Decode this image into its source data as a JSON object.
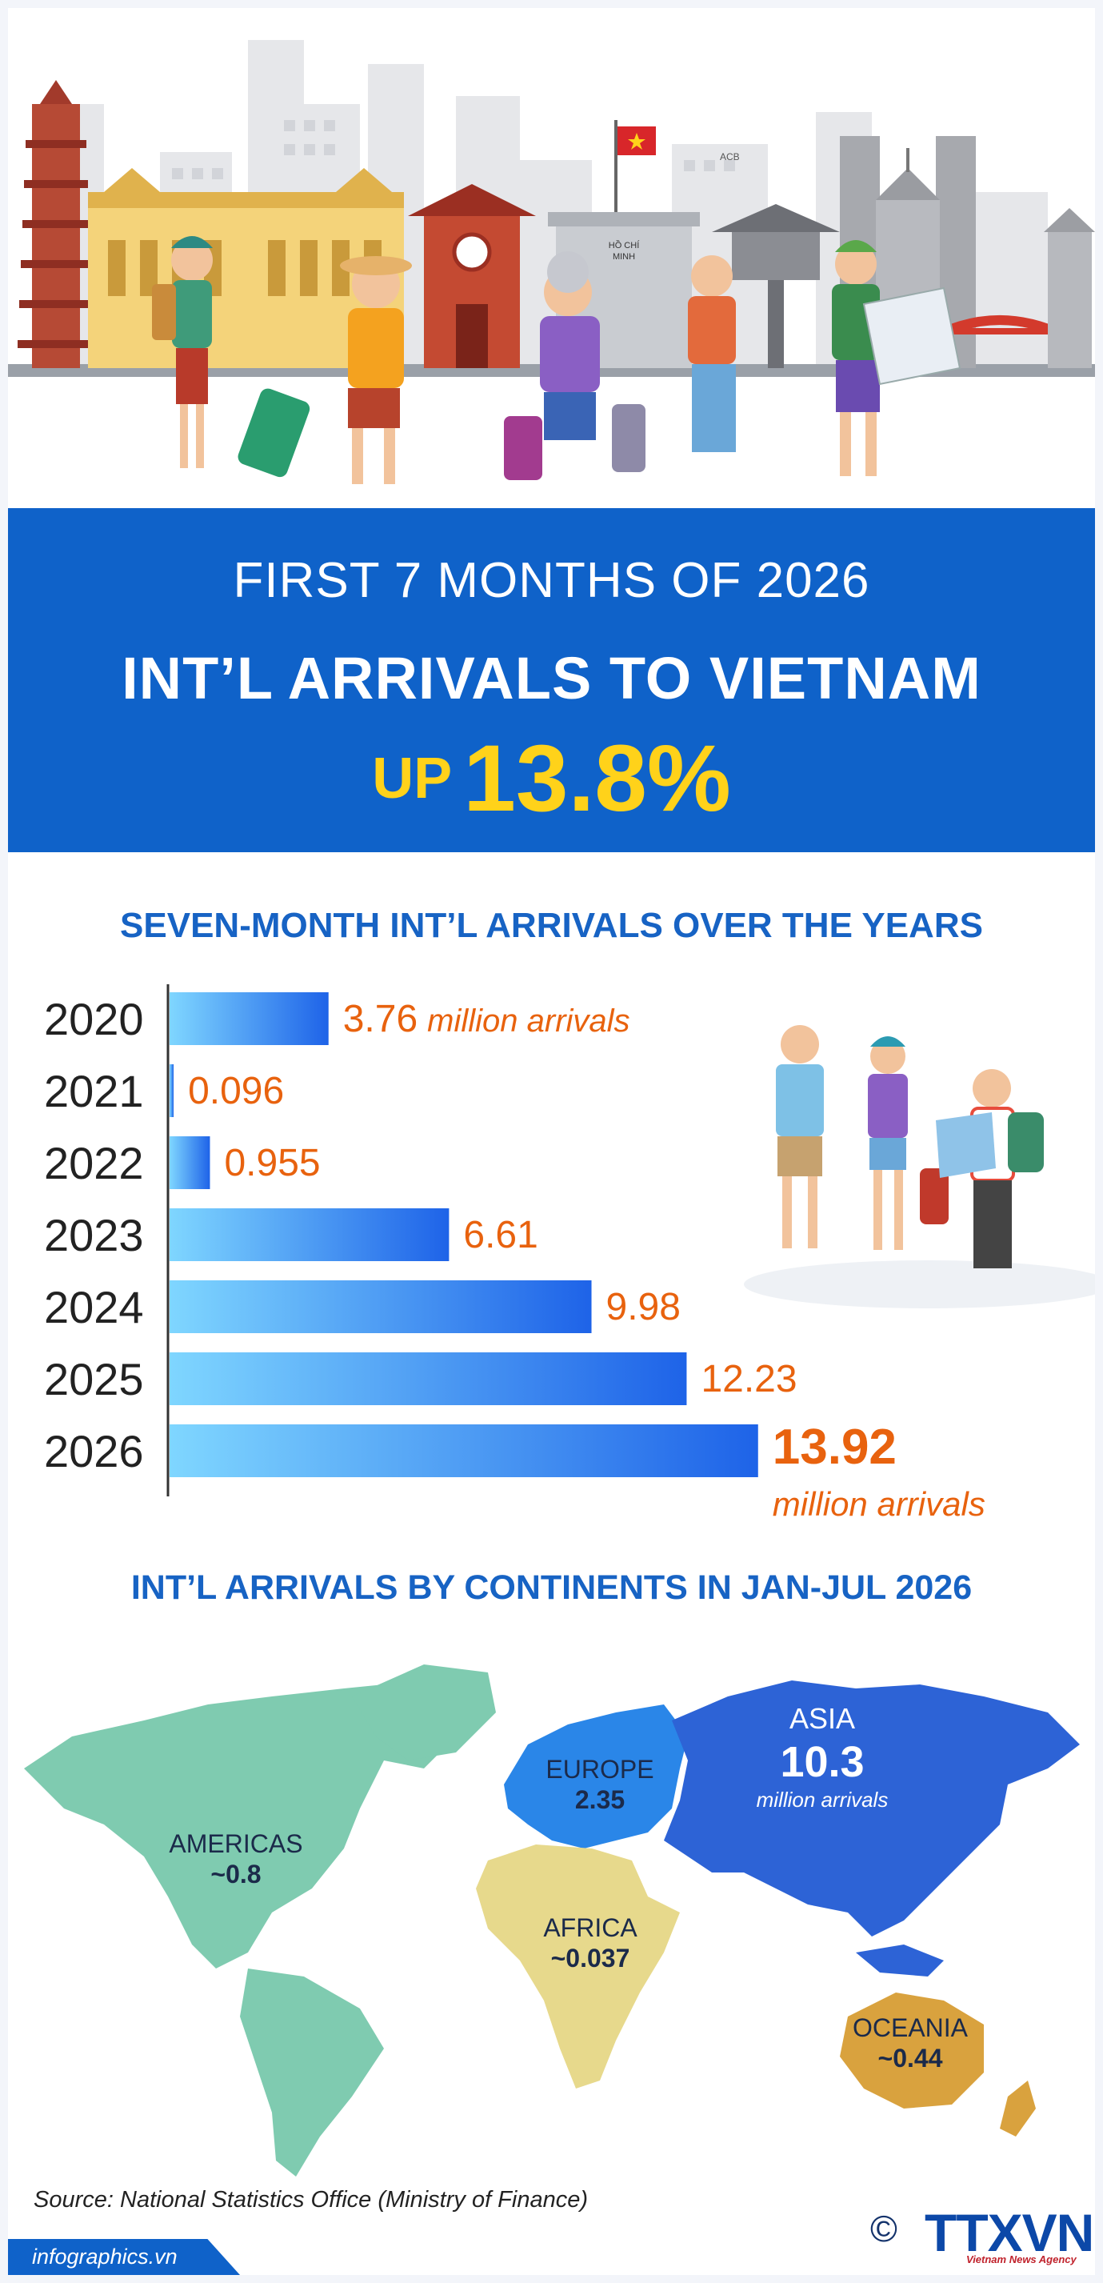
{
  "header": {
    "subtitle": "FIRST 7 MONTHS OF 2026",
    "title": "INT’L ARRIVALS TO VIETNAM",
    "up_word": "UP",
    "up_value": "13.8%",
    "flag_sign": "ACB",
    "mausoleum_sign_1": "HỒ CHÍ",
    "mausoleum_sign_2": "MINH"
  },
  "colors": {
    "brand_blue": "#0f62c9",
    "headline_yellow": "#ffd21a",
    "label_orange": "#e8620e",
    "section_title_blue": "#1763c4"
  },
  "chart_data": [
    {
      "type": "bar",
      "orientation": "horizontal",
      "title": "SEVEN-MONTH INT’L ARRIVALS OVER THE YEARS",
      "categories": [
        "2020",
        "2021",
        "2022",
        "2023",
        "2024",
        "2025",
        "2026"
      ],
      "values": [
        3.76,
        0.096,
        0.955,
        6.61,
        9.98,
        12.23,
        13.92
      ],
      "value_labels": [
        "3.76",
        "0.096",
        "0.955",
        "6.61",
        "9.98",
        "12.23",
        "13.92"
      ],
      "unit_first": "million arrivals",
      "unit_last": "million arrivals",
      "highlight_index": 6
    },
    {
      "type": "map",
      "title": "INT’L ARRIVALS BY CONTINENTS IN JAN-JUL 2026",
      "regions": [
        {
          "name": "ASIA",
          "value": 10.3,
          "label": "10.3",
          "unit": "million arrivals",
          "color": "#2d63d6"
        },
        {
          "name": "EUROPE",
          "value": 2.35,
          "label": "2.35",
          "color": "#2a86e8"
        },
        {
          "name": "AMERICAS",
          "value": 0.8,
          "label": "~0.8",
          "color": "#7fcbb0"
        },
        {
          "name": "OCEANIA",
          "value": 0.44,
          "label": "~0.44",
          "color": "#d9a23e"
        },
        {
          "name": "AFRICA",
          "value": 0.037,
          "label": "~0.037",
          "color": "#e7d98c"
        }
      ]
    }
  ],
  "footer": {
    "source": "Source: National Statistics Office (Ministry of Finance)",
    "site": "infographics.vn",
    "copyright": "©",
    "logo_text": "TTXVN",
    "agency": "Vietnam News Agency"
  }
}
